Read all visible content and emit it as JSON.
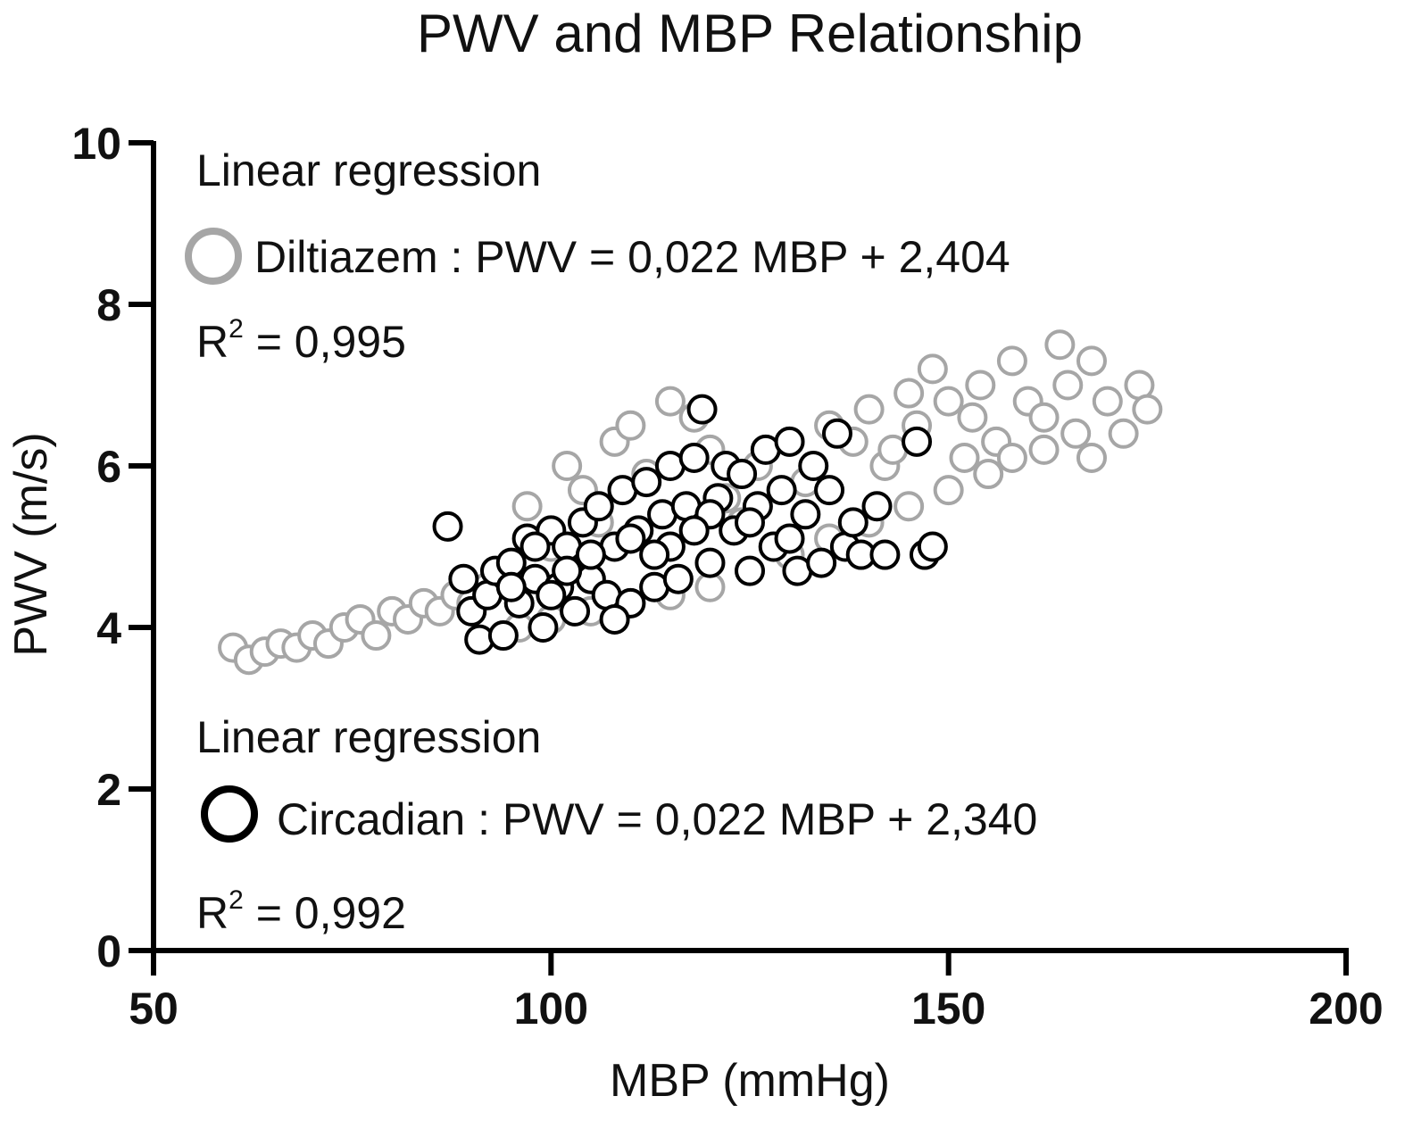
{
  "chart_data": {
    "type": "scatter",
    "title": "PWV and MBP Relationship",
    "xlabel": "MBP (mmHg)",
    "ylabel": "PWV (m/s)",
    "xlim": [
      50,
      200
    ],
    "ylim": [
      0,
      10
    ],
    "x_ticks": [
      "50",
      "100",
      "150",
      "200"
    ],
    "y_ticks": [
      "0",
      "2",
      "4",
      "6",
      "8",
      "10"
    ],
    "grid": false,
    "colors": {
      "diltiazem": "#a6a6a6",
      "circadian": "#000000",
      "axis": "#000000",
      "marker_fill": "#ffffff"
    },
    "annotations": {
      "upper": {
        "heading": "Linear regression",
        "equation": "Diltiazem : PWV = 0,022 MBP + 2,404",
        "r2_prefix": "R",
        "r2_sup": "2",
        "r2_value": " = 0,995"
      },
      "lower": {
        "heading": "Linear regression",
        "equation": "Circadian : PWV = 0,022 MBP + 2,340",
        "r2_prefix": "R",
        "r2_sup": "2",
        "r2_value": " = 0,992"
      }
    },
    "series": [
      {
        "name": "Diltiazem",
        "marker": "open-circle",
        "points": [
          [
            60,
            3.75
          ],
          [
            62,
            3.6
          ],
          [
            64,
            3.7
          ],
          [
            66,
            3.8
          ],
          [
            68,
            3.75
          ],
          [
            70,
            3.9
          ],
          [
            72,
            3.8
          ],
          [
            74,
            4.0
          ],
          [
            76,
            4.1
          ],
          [
            78,
            3.9
          ],
          [
            80,
            4.2
          ],
          [
            82,
            4.1
          ],
          [
            84,
            4.3
          ],
          [
            86,
            4.2
          ],
          [
            88,
            4.4
          ],
          [
            90,
            4.3
          ],
          [
            92,
            4.5
          ],
          [
            95,
            4.6
          ],
          [
            97,
            5.5
          ],
          [
            100,
            5.0
          ],
          [
            102,
            6.0
          ],
          [
            104,
            5.7
          ],
          [
            106,
            5.3
          ],
          [
            108,
            6.3
          ],
          [
            110,
            6.5
          ],
          [
            112,
            5.9
          ],
          [
            115,
            6.8
          ],
          [
            118,
            6.6
          ],
          [
            120,
            6.2
          ],
          [
            122,
            5.6
          ],
          [
            124,
            5.3
          ],
          [
            126,
            6.0
          ],
          [
            128,
            5.0
          ],
          [
            130,
            6.3
          ],
          [
            132,
            5.8
          ],
          [
            135,
            6.5
          ],
          [
            138,
            6.3
          ],
          [
            140,
            6.7
          ],
          [
            142,
            6.0
          ],
          [
            145,
            6.9
          ],
          [
            146,
            6.5
          ],
          [
            148,
            7.2
          ],
          [
            150,
            6.8
          ],
          [
            152,
            6.1
          ],
          [
            154,
            7.0
          ],
          [
            156,
            6.3
          ],
          [
            158,
            7.3
          ],
          [
            160,
            6.8
          ],
          [
            162,
            6.2
          ],
          [
            164,
            7.5
          ],
          [
            165,
            7.0
          ],
          [
            166,
            6.4
          ],
          [
            168,
            7.3
          ],
          [
            170,
            6.8
          ],
          [
            172,
            6.4
          ],
          [
            174,
            7.0
          ],
          [
            175,
            6.7
          ],
          [
            145,
            5.5
          ],
          [
            150,
            5.7
          ],
          [
            155,
            5.9
          ],
          [
            140,
            5.3
          ],
          [
            135,
            5.1
          ],
          [
            130,
            4.9
          ],
          [
            125,
            4.7
          ],
          [
            120,
            4.5
          ],
          [
            115,
            4.4
          ],
          [
            110,
            4.3
          ],
          [
            105,
            4.2
          ],
          [
            100,
            4.1
          ],
          [
            96,
            4.0
          ],
          [
            158,
            6.1
          ],
          [
            162,
            6.6
          ],
          [
            168,
            6.1
          ],
          [
            153,
            6.6
          ],
          [
            143,
            6.2
          ]
        ]
      },
      {
        "name": "Circadian",
        "marker": "open-circle",
        "points": [
          [
            87,
            5.25
          ],
          [
            89,
            4.6
          ],
          [
            90,
            4.2
          ],
          [
            91,
            3.85
          ],
          [
            92,
            4.4
          ],
          [
            93,
            4.7
          ],
          [
            94,
            3.9
          ],
          [
            95,
            4.8
          ],
          [
            96,
            4.3
          ],
          [
            97,
            5.1
          ],
          [
            98,
            4.6
          ],
          [
            99,
            4.0
          ],
          [
            100,
            5.2
          ],
          [
            101,
            4.5
          ],
          [
            102,
            5.0
          ],
          [
            103,
            4.2
          ],
          [
            104,
            5.3
          ],
          [
            105,
            4.6
          ],
          [
            106,
            5.5
          ],
          [
            107,
            4.4
          ],
          [
            108,
            5.0
          ],
          [
            109,
            5.7
          ],
          [
            110,
            4.3
          ],
          [
            111,
            5.2
          ],
          [
            112,
            5.8
          ],
          [
            113,
            4.5
          ],
          [
            114,
            5.4
          ],
          [
            115,
            6.0
          ],
          [
            116,
            4.6
          ],
          [
            117,
            5.5
          ],
          [
            118,
            6.1
          ],
          [
            119,
            6.7
          ],
          [
            120,
            4.8
          ],
          [
            121,
            5.6
          ],
          [
            122,
            6.0
          ],
          [
            123,
            5.2
          ],
          [
            124,
            5.9
          ],
          [
            125,
            4.7
          ],
          [
            126,
            5.5
          ],
          [
            127,
            6.2
          ],
          [
            128,
            5.0
          ],
          [
            129,
            5.7
          ],
          [
            130,
            6.3
          ],
          [
            131,
            4.7
          ],
          [
            132,
            5.4
          ],
          [
            133,
            6.0
          ],
          [
            134,
            4.8
          ],
          [
            135,
            5.7
          ],
          [
            136,
            6.4
          ],
          [
            137,
            5.0
          ],
          [
            138,
            5.3
          ],
          [
            139,
            4.9
          ],
          [
            141,
            5.5
          ],
          [
            142,
            4.9
          ],
          [
            146,
            6.3
          ],
          [
            147,
            4.9
          ],
          [
            148,
            5.0
          ],
          [
            95,
            4.5
          ],
          [
            100,
            4.4
          ],
          [
            105,
            4.9
          ],
          [
            110,
            5.1
          ],
          [
            115,
            5.0
          ],
          [
            120,
            5.4
          ],
          [
            125,
            5.3
          ],
          [
            130,
            5.1
          ],
          [
            108,
            4.1
          ],
          [
            113,
            4.9
          ],
          [
            118,
            5.2
          ],
          [
            102,
            4.7
          ],
          [
            98,
            5.0
          ]
        ]
      }
    ]
  }
}
